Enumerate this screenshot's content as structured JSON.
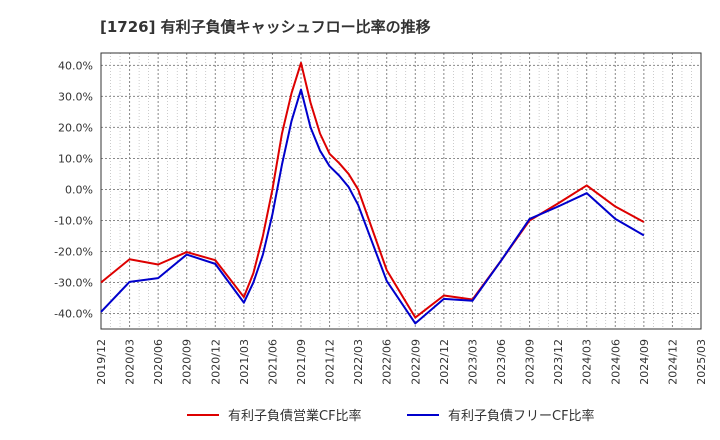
{
  "chart_data": {
    "type": "line",
    "title": "[1726]  有利子負債キャッシュフロー比率の推移",
    "xlabel": "",
    "ylabel": "",
    "x_ticks": [
      "2019/12",
      "2020/03",
      "2020/06",
      "2020/09",
      "2020/12",
      "2021/03",
      "2021/06",
      "2021/09",
      "2021/12",
      "2022/03",
      "2022/06",
      "2022/09",
      "2022/12",
      "2023/03",
      "2023/06",
      "2023/09",
      "2023/12",
      "2024/03",
      "2024/06",
      "2024/09",
      "2024/12",
      "2025/03"
    ],
    "y_ticks": [
      "40.0%",
      "30.0%",
      "20.0%",
      "10.0%",
      "0.0%",
      "-10.0%",
      "-20.0%",
      "-30.0%",
      "-40.0%"
    ],
    "ylim": [
      -45,
      44
    ],
    "grid": true,
    "legend_position": "bottom",
    "series": [
      {
        "name": "有利子負債営業CF比率",
        "color": "#dd0000",
        "points": [
          [
            "2019/12",
            -30.0
          ],
          [
            "2020/03",
            -22.5
          ],
          [
            "2020/06",
            -24.2
          ],
          [
            "2020/09",
            -20.2
          ],
          [
            "2020/12",
            -22.8
          ],
          [
            "2021/03",
            -34.7
          ],
          [
            "2021/04",
            -27.0
          ],
          [
            "2021/05",
            -15.0
          ],
          [
            "2021/06",
            0.0
          ],
          [
            "2021/07",
            18.0
          ],
          [
            "2021/08",
            31.0
          ],
          [
            "2021/09",
            40.8
          ],
          [
            "2021/10",
            28.0
          ],
          [
            "2021/11",
            18.0
          ],
          [
            "2021/12",
            11.5
          ],
          [
            "2022/01",
            8.5
          ],
          [
            "2022/02",
            5.0
          ],
          [
            "2022/03",
            0.0
          ],
          [
            "2022/06",
            -26.0
          ],
          [
            "2022/09",
            -41.3
          ],
          [
            "2022/12",
            -34.2
          ],
          [
            "2023/03",
            -35.5
          ],
          [
            "2023/06",
            -23.0
          ],
          [
            "2023/09",
            -10.0
          ],
          [
            "2023/12",
            -4.5
          ],
          [
            "2024/03",
            1.3
          ],
          [
            "2024/06",
            -5.5
          ],
          [
            "2024/09",
            -10.5
          ]
        ]
      },
      {
        "name": "有利子負債フリーCF比率",
        "color": "#0000cc",
        "points": [
          [
            "2019/12",
            -39.5
          ],
          [
            "2020/03",
            -29.8
          ],
          [
            "2020/06",
            -28.6
          ],
          [
            "2020/09",
            -21.0
          ],
          [
            "2020/12",
            -24.0
          ],
          [
            "2021/03",
            -36.5
          ],
          [
            "2021/04",
            -30.0
          ],
          [
            "2021/05",
            -21.0
          ],
          [
            "2021/06",
            -8.0
          ],
          [
            "2021/07",
            8.0
          ],
          [
            "2021/08",
            22.0
          ],
          [
            "2021/09",
            32.2
          ],
          [
            "2021/10",
            20.0
          ],
          [
            "2021/11",
            12.5
          ],
          [
            "2021/12",
            7.5
          ],
          [
            "2022/01",
            4.5
          ],
          [
            "2022/02",
            0.8
          ],
          [
            "2022/03",
            -5.0
          ],
          [
            "2022/06",
            -29.5
          ],
          [
            "2022/09",
            -43.2
          ],
          [
            "2022/12",
            -35.3
          ],
          [
            "2023/03",
            -35.9
          ],
          [
            "2023/06",
            -23.0
          ],
          [
            "2023/09",
            -9.5
          ],
          [
            "2023/12",
            -5.5
          ],
          [
            "2024/03",
            -1.2
          ],
          [
            "2024/06",
            -9.5
          ],
          [
            "2024/09",
            -14.8
          ]
        ]
      }
    ]
  }
}
